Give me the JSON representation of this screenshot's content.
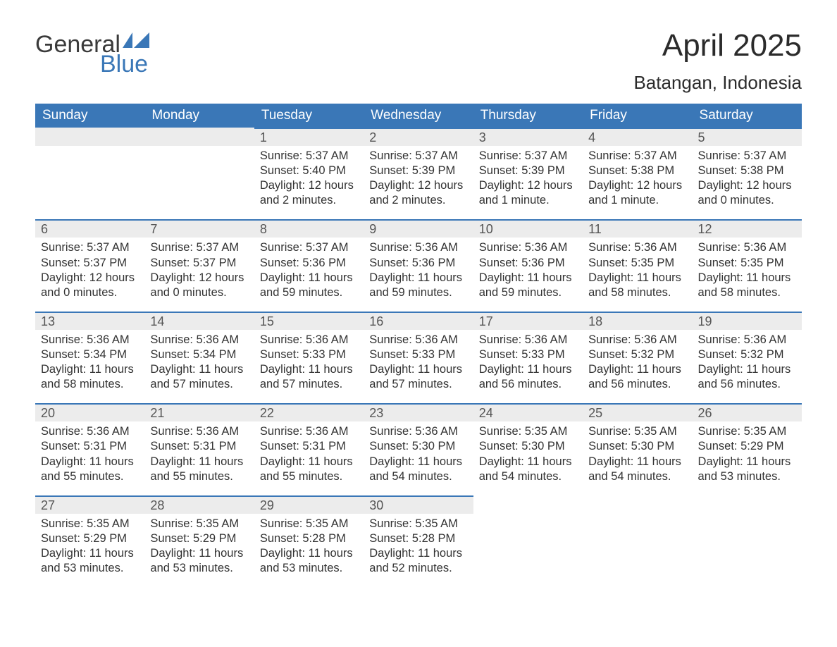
{
  "logo": {
    "text_top": "General",
    "text_bottom": "Blue",
    "flag_color": "#3a77b7"
  },
  "title": "April 2025",
  "location": "Batangan, Indonesia",
  "colors": {
    "header_bg": "#3a77b7",
    "header_text": "#ffffff",
    "daynum_bg": "#ececec",
    "daynum_border": "#3a77b7",
    "body_text": "#333333",
    "page_bg": "#ffffff"
  },
  "weekdays": [
    "Sunday",
    "Monday",
    "Tuesday",
    "Wednesday",
    "Thursday",
    "Friday",
    "Saturday"
  ],
  "weeks": [
    [
      {
        "day": "",
        "sunrise": "",
        "sunset": "",
        "daylight": ""
      },
      {
        "day": "",
        "sunrise": "",
        "sunset": "",
        "daylight": ""
      },
      {
        "day": "1",
        "sunrise": "Sunrise: 5:37 AM",
        "sunset": "Sunset: 5:40 PM",
        "daylight": "Daylight: 12 hours and 2 minutes."
      },
      {
        "day": "2",
        "sunrise": "Sunrise: 5:37 AM",
        "sunset": "Sunset: 5:39 PM",
        "daylight": "Daylight: 12 hours and 2 minutes."
      },
      {
        "day": "3",
        "sunrise": "Sunrise: 5:37 AM",
        "sunset": "Sunset: 5:39 PM",
        "daylight": "Daylight: 12 hours and 1 minute."
      },
      {
        "day": "4",
        "sunrise": "Sunrise: 5:37 AM",
        "sunset": "Sunset: 5:38 PM",
        "daylight": "Daylight: 12 hours and 1 minute."
      },
      {
        "day": "5",
        "sunrise": "Sunrise: 5:37 AM",
        "sunset": "Sunset: 5:38 PM",
        "daylight": "Daylight: 12 hours and 0 minutes."
      }
    ],
    [
      {
        "day": "6",
        "sunrise": "Sunrise: 5:37 AM",
        "sunset": "Sunset: 5:37 PM",
        "daylight": "Daylight: 12 hours and 0 minutes."
      },
      {
        "day": "7",
        "sunrise": "Sunrise: 5:37 AM",
        "sunset": "Sunset: 5:37 PM",
        "daylight": "Daylight: 12 hours and 0 minutes."
      },
      {
        "day": "8",
        "sunrise": "Sunrise: 5:37 AM",
        "sunset": "Sunset: 5:36 PM",
        "daylight": "Daylight: 11 hours and 59 minutes."
      },
      {
        "day": "9",
        "sunrise": "Sunrise: 5:36 AM",
        "sunset": "Sunset: 5:36 PM",
        "daylight": "Daylight: 11 hours and 59 minutes."
      },
      {
        "day": "10",
        "sunrise": "Sunrise: 5:36 AM",
        "sunset": "Sunset: 5:36 PM",
        "daylight": "Daylight: 11 hours and 59 minutes."
      },
      {
        "day": "11",
        "sunrise": "Sunrise: 5:36 AM",
        "sunset": "Sunset: 5:35 PM",
        "daylight": "Daylight: 11 hours and 58 minutes."
      },
      {
        "day": "12",
        "sunrise": "Sunrise: 5:36 AM",
        "sunset": "Sunset: 5:35 PM",
        "daylight": "Daylight: 11 hours and 58 minutes."
      }
    ],
    [
      {
        "day": "13",
        "sunrise": "Sunrise: 5:36 AM",
        "sunset": "Sunset: 5:34 PM",
        "daylight": "Daylight: 11 hours and 58 minutes."
      },
      {
        "day": "14",
        "sunrise": "Sunrise: 5:36 AM",
        "sunset": "Sunset: 5:34 PM",
        "daylight": "Daylight: 11 hours and 57 minutes."
      },
      {
        "day": "15",
        "sunrise": "Sunrise: 5:36 AM",
        "sunset": "Sunset: 5:33 PM",
        "daylight": "Daylight: 11 hours and 57 minutes."
      },
      {
        "day": "16",
        "sunrise": "Sunrise: 5:36 AM",
        "sunset": "Sunset: 5:33 PM",
        "daylight": "Daylight: 11 hours and 57 minutes."
      },
      {
        "day": "17",
        "sunrise": "Sunrise: 5:36 AM",
        "sunset": "Sunset: 5:33 PM",
        "daylight": "Daylight: 11 hours and 56 minutes."
      },
      {
        "day": "18",
        "sunrise": "Sunrise: 5:36 AM",
        "sunset": "Sunset: 5:32 PM",
        "daylight": "Daylight: 11 hours and 56 minutes."
      },
      {
        "day": "19",
        "sunrise": "Sunrise: 5:36 AM",
        "sunset": "Sunset: 5:32 PM",
        "daylight": "Daylight: 11 hours and 56 minutes."
      }
    ],
    [
      {
        "day": "20",
        "sunrise": "Sunrise: 5:36 AM",
        "sunset": "Sunset: 5:31 PM",
        "daylight": "Daylight: 11 hours and 55 minutes."
      },
      {
        "day": "21",
        "sunrise": "Sunrise: 5:36 AM",
        "sunset": "Sunset: 5:31 PM",
        "daylight": "Daylight: 11 hours and 55 minutes."
      },
      {
        "day": "22",
        "sunrise": "Sunrise: 5:36 AM",
        "sunset": "Sunset: 5:31 PM",
        "daylight": "Daylight: 11 hours and 55 minutes."
      },
      {
        "day": "23",
        "sunrise": "Sunrise: 5:36 AM",
        "sunset": "Sunset: 5:30 PM",
        "daylight": "Daylight: 11 hours and 54 minutes."
      },
      {
        "day": "24",
        "sunrise": "Sunrise: 5:35 AM",
        "sunset": "Sunset: 5:30 PM",
        "daylight": "Daylight: 11 hours and 54 minutes."
      },
      {
        "day": "25",
        "sunrise": "Sunrise: 5:35 AM",
        "sunset": "Sunset: 5:30 PM",
        "daylight": "Daylight: 11 hours and 54 minutes."
      },
      {
        "day": "26",
        "sunrise": "Sunrise: 5:35 AM",
        "sunset": "Sunset: 5:29 PM",
        "daylight": "Daylight: 11 hours and 53 minutes."
      }
    ],
    [
      {
        "day": "27",
        "sunrise": "Sunrise: 5:35 AM",
        "sunset": "Sunset: 5:29 PM",
        "daylight": "Daylight: 11 hours and 53 minutes."
      },
      {
        "day": "28",
        "sunrise": "Sunrise: 5:35 AM",
        "sunset": "Sunset: 5:29 PM",
        "daylight": "Daylight: 11 hours and 53 minutes."
      },
      {
        "day": "29",
        "sunrise": "Sunrise: 5:35 AM",
        "sunset": "Sunset: 5:28 PM",
        "daylight": "Daylight: 11 hours and 53 minutes."
      },
      {
        "day": "30",
        "sunrise": "Sunrise: 5:35 AM",
        "sunset": "Sunset: 5:28 PM",
        "daylight": "Daylight: 11 hours and 52 minutes."
      },
      {
        "day": "",
        "sunrise": "",
        "sunset": "",
        "daylight": ""
      },
      {
        "day": "",
        "sunrise": "",
        "sunset": "",
        "daylight": ""
      },
      {
        "day": "",
        "sunrise": "",
        "sunset": "",
        "daylight": ""
      }
    ]
  ]
}
